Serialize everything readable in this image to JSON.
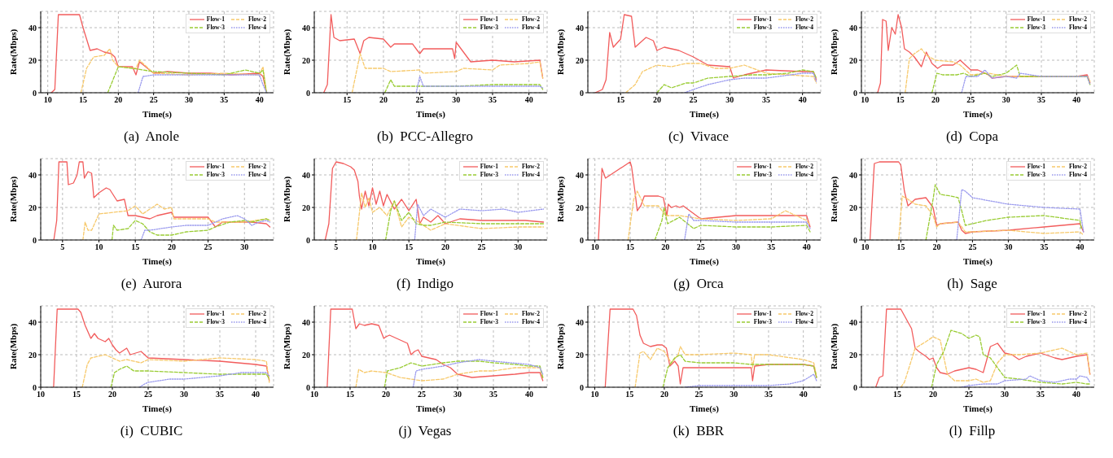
{
  "chart_data": [
    {
      "type": "line",
      "title": "(a)  Anole",
      "xlabel": "Time(s)",
      "ylabel": "Rate(Mbps)",
      "xlim": [
        9,
        42
      ],
      "xticks": [
        10,
        15,
        20,
        25,
        30,
        35,
        40
      ],
      "ylim": [
        0,
        50
      ],
      "yticks": [
        0,
        20,
        40
      ],
      "grid": true,
      "legend": "top right",
      "series": [
        {
          "name": "Flow-1",
          "color": "#f25c5c",
          "line_style": "solid",
          "x": [
            10.5,
            11,
            11.5,
            14.5,
            15,
            15.5,
            16,
            17,
            18,
            19,
            19.5,
            20,
            22,
            22.5,
            23,
            25,
            27,
            30,
            33,
            36,
            40,
            40.5,
            41
          ],
          "values": [
            0,
            2,
            48,
            48,
            40,
            33,
            26,
            27,
            25,
            24,
            22,
            16,
            16,
            11,
            19,
            12,
            13,
            12,
            12,
            11,
            12,
            10,
            0
          ]
        },
        {
          "name": "Flow-2",
          "color": "#f7c96b",
          "line_style": "dashed",
          "x": [
            14.7,
            15.5,
            16.5,
            18,
            18.8,
            19.2,
            20,
            22.5,
            23,
            25,
            30,
            35,
            40,
            40.5,
            41
          ],
          "values": [
            0,
            15,
            22,
            23,
            27,
            20,
            16,
            15,
            20,
            12,
            11,
            12,
            11,
            16,
            0
          ]
        },
        {
          "name": "Flow-3",
          "color": "#99cc33",
          "line_style": "dashed",
          "x": [
            18.5,
            20,
            22,
            25,
            30,
            35,
            38,
            40,
            40.5,
            41
          ],
          "values": [
            0,
            16,
            15,
            13,
            12,
            11,
            14,
            12,
            14,
            0
          ]
        },
        {
          "name": "Flow-4",
          "color": "#9999ee",
          "line_style": "dotted",
          "x": [
            22.8,
            23.5,
            25,
            30,
            35,
            40,
            40.5,
            41
          ],
          "values": [
            0,
            10,
            11,
            11,
            11,
            11,
            5,
            0
          ]
        }
      ]
    },
    {
      "type": "line",
      "title": "(b)  PCC-Allegro",
      "xlabel": "Time(s)",
      "ylabel": "Rate(Mbps)",
      "xlim": [
        10.5,
        42.5
      ],
      "xticks": [
        15,
        20,
        25,
        30,
        35,
        40
      ],
      "ylim": [
        0,
        50
      ],
      "yticks": [
        0,
        20,
        40
      ],
      "grid": true,
      "legend": "top right",
      "series": [
        {
          "name": "Flow-1",
          "color": "#f25c5c",
          "line_style": "solid",
          "x": [
            11.8,
            12.3,
            12.8,
            13.2,
            14,
            16,
            16.8,
            17.3,
            18,
            20,
            21,
            21.5,
            24,
            25,
            25.5,
            29.5,
            29.8,
            30,
            31,
            32,
            35,
            38,
            41.5,
            41.9
          ],
          "values": [
            0,
            5,
            48,
            34,
            32,
            33,
            24,
            32,
            34,
            33,
            28,
            30,
            30,
            24,
            27,
            27,
            21,
            31,
            25,
            19,
            20,
            19,
            20,
            9
          ]
        },
        {
          "name": "Flow-2",
          "color": "#f7c96b",
          "line_style": "dashed",
          "x": [
            15.7,
            16.8,
            17.5,
            20,
            21,
            25,
            25.5,
            30,
            31,
            35,
            36,
            40,
            41.5,
            41.9
          ],
          "values": [
            0,
            24,
            15,
            15,
            13,
            14,
            12,
            13,
            15,
            14,
            17,
            18,
            19,
            9
          ]
        },
        {
          "name": "Flow-3",
          "color": "#99cc33",
          "line_style": "dashed",
          "x": [
            20.2,
            21,
            21.5,
            25,
            30,
            35,
            40,
            41.5,
            41.9
          ],
          "values": [
            0,
            8,
            4,
            4,
            4,
            5,
            5,
            5,
            2
          ]
        },
        {
          "name": "Flow-4",
          "color": "#9999ee",
          "line_style": "dotted",
          "x": [
            24.5,
            25,
            25.5,
            30,
            35,
            40,
            41.5,
            41.9
          ],
          "values": [
            0,
            10,
            4,
            4,
            4,
            4,
            4,
            3
          ]
        }
      ]
    },
    {
      "type": "line",
      "title": "(c)  Vivace",
      "xlabel": "Time(s)",
      "ylabel": "Rate(Mbps)",
      "xlim": [
        10.5,
        42.5
      ],
      "xticks": [
        15,
        20,
        25,
        30,
        35,
        40
      ],
      "ylim": [
        0,
        50
      ],
      "yticks": [
        0,
        20,
        40
      ],
      "grid": true,
      "legend": "top right",
      "series": [
        {
          "name": "Flow-1",
          "color": "#f25c5c",
          "line_style": "solid",
          "x": [
            11.5,
            12.5,
            13,
            13.5,
            14,
            15,
            15.5,
            16.5,
            17,
            17.5,
            18.5,
            19.5,
            20,
            21,
            22,
            23,
            25,
            27,
            30,
            30.5,
            32,
            35,
            40,
            41.5,
            41.9
          ],
          "values": [
            0,
            2,
            8,
            37,
            28,
            33,
            48,
            47,
            28,
            30,
            34,
            32,
            26,
            28,
            27,
            26,
            22,
            17,
            16,
            9,
            11,
            14,
            13,
            13,
            8
          ]
        },
        {
          "name": "Flow-2",
          "color": "#f7c96b",
          "line_style": "dashed",
          "x": [
            15.7,
            17,
            18,
            20,
            22,
            24,
            26,
            28,
            30,
            32,
            35,
            38,
            41.5,
            41.9
          ],
          "values": [
            0,
            5,
            13,
            17,
            16,
            18,
            18,
            15,
            15,
            17,
            12,
            11,
            10,
            6
          ]
        },
        {
          "name": "Flow-3",
          "color": "#99cc33",
          "line_style": "dashed",
          "x": [
            20,
            21,
            22,
            24,
            25,
            27,
            30,
            33,
            35,
            38,
            40,
            41.5,
            41.9
          ],
          "values": [
            0,
            5,
            3,
            6,
            6,
            9,
            10,
            11,
            11,
            12,
            14,
            13,
            9
          ]
        },
        {
          "name": "Flow-4",
          "color": "#9999ee",
          "line_style": "dotted",
          "x": [
            23.8,
            25,
            27,
            30,
            32,
            35,
            40,
            41.5,
            41.9
          ],
          "values": [
            0,
            2,
            5,
            8,
            9,
            9,
            12,
            12,
            7
          ]
        }
      ]
    },
    {
      "type": "line",
      "title": "(d)  Copa",
      "xlabel": "Time(s)",
      "ylabel": "Rate(Mbps)",
      "xlim": [
        9.5,
        42.5
      ],
      "xticks": [
        10,
        15,
        20,
        25,
        30,
        35,
        40
      ],
      "ylim": [
        0,
        50
      ],
      "yticks": [
        0,
        20,
        40
      ],
      "grid": true,
      "legend": "top right",
      "series": [
        {
          "name": "Flow-1",
          "color": "#f25c5c",
          "line_style": "solid",
          "x": [
            11.8,
            12.2,
            12.5,
            13,
            13.3,
            13.8,
            14.3,
            14.7,
            15.2,
            15.6,
            16.3,
            17,
            18,
            18.7,
            19.5,
            20.3,
            21,
            22.5,
            23.5,
            25,
            26,
            27.5,
            28,
            30,
            35,
            40,
            41.5,
            41.9
          ],
          "values": [
            0,
            6,
            45,
            44,
            26,
            40,
            36,
            48,
            40,
            27,
            25,
            22,
            16,
            25,
            18,
            15,
            17,
            17,
            20,
            14,
            14,
            11,
            9,
            10,
            10,
            10,
            11,
            6
          ]
        },
        {
          "name": "Flow-2",
          "color": "#f7c96b",
          "line_style": "dashed",
          "x": [
            15.7,
            16.3,
            17,
            18,
            18.7,
            20,
            22.5,
            23.5,
            25,
            27.5,
            30,
            35,
            41.5,
            41.9
          ],
          "values": [
            0,
            21,
            24,
            27,
            23,
            20,
            19,
            17,
            11,
            12,
            10,
            10,
            10,
            7
          ]
        },
        {
          "name": "Flow-3",
          "color": "#99cc33",
          "line_style": "dashed",
          "x": [
            19.5,
            20.2,
            21,
            23,
            24,
            25,
            27,
            28,
            30,
            31.5,
            32,
            35,
            41.5,
            41.9
          ],
          "values": [
            0,
            12,
            11,
            11,
            12,
            10,
            12,
            10,
            12,
            17,
            10,
            10,
            10,
            5
          ]
        },
        {
          "name": "Flow-4",
          "color": "#9999ee",
          "line_style": "dotted",
          "x": [
            23.7,
            24.3,
            25,
            26,
            27,
            28,
            30,
            31.5,
            32,
            35,
            41.5,
            41.9
          ],
          "values": [
            0,
            10,
            10,
            10,
            14,
            9,
            10,
            9,
            12,
            10,
            10,
            5
          ]
        }
      ]
    },
    {
      "type": "line",
      "title": "(e)  Aurora",
      "xlabel": "Time(s)",
      "ylabel": "Rate(Mbps)",
      "xlim": [
        2,
        34
      ],
      "xticks": [
        5,
        10,
        15,
        20,
        25,
        30
      ],
      "ylim": [
        0,
        50
      ],
      "yticks": [
        0,
        20,
        40
      ],
      "grid": true,
      "legend": "top right",
      "series": [
        {
          "name": "Flow-1",
          "color": "#f25c5c",
          "line_style": "solid",
          "x": [
            3.8,
            4.2,
            4.5,
            5,
            5.6,
            5.8,
            6.5,
            7,
            7.3,
            7.8,
            8,
            8.5,
            9,
            9.3,
            10,
            11,
            11.5,
            12.5,
            13.5,
            14,
            15,
            17,
            18,
            20,
            20.3,
            22,
            25,
            26,
            27,
            30,
            31,
            33,
            33.5
          ],
          "values": [
            0,
            12,
            48,
            48,
            48,
            34,
            35,
            40,
            48,
            48,
            38,
            42,
            41,
            26,
            29,
            32,
            31,
            24,
            25,
            15,
            15,
            13,
            15,
            17,
            14,
            14,
            14,
            8,
            11,
            11,
            11,
            10,
            8
          ]
        },
        {
          "name": "Flow-2",
          "color": "#f7c96b",
          "line_style": "dashed",
          "x": [
            7.8,
            8.1,
            8.5,
            9,
            10,
            12,
            14,
            15,
            16,
            17,
            18,
            19,
            20,
            20.3,
            22,
            25,
            26,
            30,
            33,
            33.5
          ],
          "values": [
            0,
            11,
            6,
            6,
            16,
            17,
            18,
            21,
            16,
            19,
            22,
            19,
            20,
            13,
            13,
            13,
            11,
            11,
            13,
            12
          ]
        },
        {
          "name": "Flow-3",
          "color": "#99cc33",
          "line_style": "dashed",
          "x": [
            11.8,
            12,
            12.5,
            14,
            15,
            16,
            17,
            18,
            20,
            22,
            25,
            26,
            28,
            30,
            31,
            33,
            33.5
          ],
          "values": [
            0,
            9,
            6,
            7,
            12,
            10,
            5,
            3,
            3,
            5,
            6,
            8,
            11,
            12,
            11,
            13,
            12
          ]
        },
        {
          "name": "Flow-4",
          "color": "#9999ee",
          "line_style": "dotted",
          "x": [
            15.8,
            16.3,
            17,
            20,
            22,
            25,
            27,
            29,
            30,
            31,
            32,
            33,
            33.5
          ],
          "values": [
            0,
            6,
            6,
            8,
            9,
            9,
            13,
            15,
            13,
            9,
            11,
            12,
            11
          ]
        }
      ]
    },
    {
      "type": "line",
      "title": "(f)  Indigo",
      "xlabel": "Time(s)",
      "ylabel": "Rate(Mbps)",
      "xlim": [
        2,
        34
      ],
      "xticks": [
        5,
        10,
        15,
        20,
        25,
        30
      ],
      "ylim": [
        0,
        50
      ],
      "yticks": [
        0,
        20,
        40
      ],
      "grid": true,
      "legend": "top right",
      "series": [
        {
          "name": "Flow-1",
          "color": "#f25c5c",
          "line_style": "solid",
          "x": [
            3.5,
            4,
            4.5,
            5,
            6,
            7,
            7.5,
            8,
            8.2,
            8.5,
            9,
            9.5,
            10,
            10.5,
            11,
            11.5,
            12,
            13,
            14,
            15,
            16,
            16.5,
            17,
            18,
            19,
            20,
            22,
            25,
            28,
            31,
            33.5
          ],
          "values": [
            0,
            10,
            44,
            48,
            47,
            45,
            43,
            36,
            27,
            19,
            30,
            21,
            32,
            22,
            30,
            21,
            28,
            19,
            25,
            18,
            25,
            10,
            14,
            11,
            15,
            10,
            13,
            12,
            12,
            12,
            11
          ]
        },
        {
          "name": "Flow-2",
          "color": "#f7c96b",
          "line_style": "dashed",
          "x": [
            7.8,
            8.5,
            9,
            9.5,
            10,
            11,
            12,
            13,
            14,
            15,
            16,
            17,
            18,
            20,
            25,
            30,
            33.5
          ],
          "values": [
            0,
            29,
            20,
            26,
            17,
            20,
            15,
            24,
            8,
            14,
            12,
            9,
            6,
            10,
            7,
            8,
            8
          ]
        },
        {
          "name": "Flow-3",
          "color": "#99cc33",
          "line_style": "dashed",
          "x": [
            11.8,
            12.5,
            13,
            14,
            15,
            16,
            17,
            18,
            20,
            25,
            30,
            33.5
          ],
          "values": [
            0,
            18,
            24,
            12,
            17,
            10,
            9,
            9,
            11,
            10,
            10,
            10
          ]
        },
        {
          "name": "Flow-4",
          "color": "#9999ee",
          "line_style": "dotted",
          "x": [
            15.8,
            16.2,
            17,
            18,
            20,
            22,
            25,
            28,
            30,
            33.5
          ],
          "values": [
            0,
            22,
            15,
            19,
            14,
            19,
            18,
            19,
            17,
            19
          ]
        }
      ]
    },
    {
      "type": "line",
      "title": "(g)  Orca",
      "xlabel": "Time(s)",
      "ylabel": "Rate(Mbps)",
      "xlim": [
        9,
        42
      ],
      "xticks": [
        10,
        15,
        20,
        25,
        30,
        35,
        40
      ],
      "ylim": [
        0,
        50
      ],
      "yticks": [
        0,
        20,
        40
      ],
      "grid": true,
      "legend": "top right",
      "series": [
        {
          "name": "Flow-1",
          "color": "#f25c5c",
          "line_style": "solid",
          "x": [
            10.5,
            11,
            11.5,
            15,
            15.2,
            15.7,
            16,
            16.5,
            17,
            19,
            19.7,
            20.2,
            20.4,
            20.8,
            21.5,
            22,
            22.5,
            25,
            30,
            35,
            40,
            40.5
          ],
          "values": [
            0,
            44,
            38,
            48,
            45,
            29,
            18,
            21,
            27,
            27,
            26,
            15,
            22,
            20,
            21,
            20,
            21,
            13,
            15,
            15,
            15,
            8
          ]
        },
        {
          "name": "Flow-2",
          "color": "#f7c96b",
          "line_style": "dashed",
          "x": [
            14.7,
            15.5,
            16,
            17,
            19,
            20,
            22,
            25,
            30,
            35,
            37,
            40,
            40.5
          ],
          "values": [
            0,
            25,
            30,
            21,
            21,
            15,
            15,
            13,
            12,
            13,
            18,
            12,
            9
          ]
        },
        {
          "name": "Flow-3",
          "color": "#99cc33",
          "line_style": "dashed",
          "x": [
            18.5,
            19.5,
            19.8,
            20.3,
            22,
            24,
            25,
            30,
            35,
            40,
            40.5
          ],
          "values": [
            0,
            12,
            20,
            10,
            14,
            7,
            9,
            8,
            8,
            9,
            5
          ]
        },
        {
          "name": "Flow-4",
          "color": "#9999ee",
          "line_style": "dotted",
          "x": [
            22.7,
            23.3,
            24,
            25,
            30,
            35,
            40,
            40.5
          ],
          "values": [
            0,
            16,
            12,
            12,
            11,
            11,
            11,
            7
          ]
        }
      ]
    },
    {
      "type": "line",
      "title": "(h)  Sage",
      "xlabel": "Time(s)",
      "ylabel": "Rate(Mbps)",
      "xlim": [
        9.5,
        42
      ],
      "xticks": [
        10,
        15,
        20,
        25,
        30,
        35,
        40
      ],
      "ylim": [
        0,
        50
      ],
      "yticks": [
        0,
        20,
        40
      ],
      "grid": true,
      "legend": "top right",
      "series": [
        {
          "name": "Flow-1",
          "color": "#f25c5c",
          "line_style": "solid",
          "x": [
            10.7,
            11.3,
            12,
            14.7,
            15,
            15.5,
            16,
            17,
            18.5,
            19.5,
            20,
            20.5,
            23,
            23.5,
            24,
            25,
            30,
            35,
            40,
            40.5
          ],
          "values": [
            0,
            47,
            48,
            48,
            46,
            30,
            21,
            25,
            26,
            20,
            9,
            10,
            11,
            6,
            4,
            5,
            6,
            8,
            10,
            5
          ]
        },
        {
          "name": "Flow-2",
          "color": "#f7c96b",
          "line_style": "dashed",
          "x": [
            14.7,
            15.2,
            16,
            17,
            18.5,
            19.5,
            20,
            20.5,
            23,
            24,
            25,
            30,
            35,
            40,
            40.5
          ],
          "values": [
            0,
            27,
            25,
            22,
            21,
            15,
            8,
            10,
            11,
            5,
            5,
            6,
            4,
            5,
            3
          ]
        },
        {
          "name": "Flow-3",
          "color": "#99cc33",
          "line_style": "dashed",
          "x": [
            18.5,
            19.5,
            19.8,
            20.5,
            22,
            23,
            23.5,
            24,
            25,
            27,
            30,
            35,
            40,
            40.2
          ],
          "values": [
            0,
            25,
            34,
            28,
            27,
            26,
            18,
            9,
            10,
            12,
            14,
            15,
            12,
            7
          ]
        },
        {
          "name": "Flow-4",
          "color": "#9999ee",
          "line_style": "dotted",
          "x": [
            22.8,
            23.5,
            24,
            25,
            30,
            35,
            40,
            40.5
          ],
          "values": [
            0,
            31,
            30,
            26,
            22,
            20,
            19,
            5
          ]
        }
      ]
    },
    {
      "type": "line",
      "title": "(i)  CUBIC",
      "xlabel": "Time(s)",
      "ylabel": "Rate(Mbps)",
      "xlim": [
        10,
        42.5
      ],
      "xticks": [
        10,
        15,
        20,
        25,
        30,
        35,
        40
      ],
      "ylim": [
        0,
        50
      ],
      "yticks": [
        0,
        20,
        40
      ],
      "grid": true,
      "legend": "top right",
      "series": [
        {
          "name": "Flow-1",
          "color": "#f25c5c",
          "line_style": "solid",
          "x": [
            11.8,
            12.3,
            15.2,
            15.6,
            16.2,
            16.5,
            17,
            17.5,
            18,
            19,
            19.5,
            20,
            20.5,
            21,
            22,
            22.5,
            24,
            25,
            30,
            35,
            40,
            41.5,
            41.9
          ],
          "values": [
            0,
            48,
            48,
            46,
            38,
            35,
            30,
            33,
            30,
            28,
            30,
            26,
            23,
            21,
            24,
            20,
            22,
            18,
            17,
            16,
            14,
            13,
            4
          ]
        },
        {
          "name": "Flow-2",
          "color": "#f7c96b",
          "line_style": "dashed",
          "x": [
            15.8,
            16.5,
            17,
            18,
            19,
            20,
            21,
            22,
            24,
            25,
            30,
            35,
            40,
            41.5,
            41.9
          ],
          "values": [
            0,
            14,
            18,
            19,
            20,
            18,
            16,
            17,
            15,
            17,
            16,
            18,
            17,
            16,
            3
          ]
        },
        {
          "name": "Flow-3",
          "color": "#99cc33",
          "line_style": "dashed",
          "x": [
            19.8,
            20.3,
            21,
            22,
            23,
            25,
            30,
            35,
            40,
            41.5,
            41.9
          ],
          "values": [
            0,
            9,
            11,
            13,
            10,
            10,
            9,
            8,
            8,
            8,
            5
          ]
        },
        {
          "name": "Flow-4",
          "color": "#9999ee",
          "line_style": "dotted",
          "x": [
            23.8,
            24.5,
            25,
            28,
            30,
            35,
            38,
            40,
            41.5,
            41.9
          ],
          "values": [
            0,
            2,
            3,
            5,
            5,
            7,
            9,
            9,
            9,
            7
          ]
        }
      ]
    },
    {
      "type": "line",
      "title": "(j)  Vegas",
      "xlabel": "Time(s)",
      "ylabel": "Rate(Mbps)",
      "xlim": [
        10,
        42.5
      ],
      "xticks": [
        10,
        15,
        20,
        25,
        30,
        35,
        40
      ],
      "ylim": [
        0,
        50
      ],
      "yticks": [
        0,
        20,
        40
      ],
      "grid": true,
      "legend": "top right",
      "series": [
        {
          "name": "Flow-1",
          "color": "#f25c5c",
          "line_style": "solid",
          "x": [
            11.8,
            12.3,
            15.3,
            15.8,
            16.3,
            17,
            18,
            19,
            19.7,
            20,
            20.5,
            22,
            23,
            23.5,
            24,
            24.5,
            25,
            27,
            28,
            29,
            30,
            32,
            35,
            38,
            40,
            41.5,
            41.9
          ],
          "values": [
            0,
            48,
            48,
            36,
            39,
            38,
            39,
            38,
            30,
            31,
            32,
            29,
            27,
            20,
            22,
            23,
            19,
            17,
            14,
            12,
            8,
            6,
            7,
            8,
            9,
            9,
            4
          ]
        },
        {
          "name": "Flow-2",
          "color": "#f7c96b",
          "line_style": "dashed",
          "x": [
            15.8,
            16.2,
            17,
            18,
            20,
            22,
            25,
            28,
            30,
            33,
            35,
            38,
            40,
            41.5,
            41.9
          ],
          "values": [
            0,
            11,
            9,
            10,
            9,
            6,
            4,
            5,
            8,
            10,
            10,
            12,
            12,
            12,
            6
          ]
        },
        {
          "name": "Flow-3",
          "color": "#99cc33",
          "line_style": "dashed",
          "x": [
            19.8,
            20.2,
            22,
            23.5,
            25,
            28,
            30,
            33,
            35,
            38,
            40,
            41.5,
            41.9
          ],
          "values": [
            0,
            10,
            12,
            15,
            13,
            15,
            16,
            16,
            15,
            14,
            13,
            13,
            6
          ]
        },
        {
          "name": "Flow-4",
          "color": "#9999ee",
          "line_style": "dotted",
          "x": [
            23.8,
            24.2,
            25,
            28,
            30,
            33,
            35,
            40,
            41.5,
            41.9
          ],
          "values": [
            0,
            10,
            11,
            13,
            15,
            17,
            16,
            14,
            12,
            8
          ]
        }
      ]
    },
    {
      "type": "line",
      "title": "(k)  BBR",
      "xlabel": "Time(s)",
      "ylabel": "Rate(Mbps)",
      "xlim": [
        9,
        42.5
      ],
      "xticks": [
        10,
        15,
        20,
        25,
        30,
        35,
        40
      ],
      "ylim": [
        0,
        50
      ],
      "yticks": [
        0,
        20,
        40
      ],
      "grid": true,
      "legend": "top right",
      "series": [
        {
          "name": "Flow-1",
          "color": "#f25c5c",
          "line_style": "solid",
          "x": [
            11.5,
            12.2,
            15.5,
            16,
            16.5,
            17,
            18,
            19,
            19.7,
            20.3,
            20.8,
            21.5,
            22,
            22.3,
            22.7,
            25,
            30,
            32.5,
            32.7,
            33,
            35,
            40,
            41.5,
            41.9
          ],
          "values": [
            0,
            48,
            48,
            44,
            32,
            27,
            25,
            26,
            26,
            24,
            13,
            16,
            13,
            2,
            12,
            12,
            12,
            12,
            4,
            13,
            14,
            14,
            13,
            6
          ]
        },
        {
          "name": "Flow-2",
          "color": "#f7c96b",
          "line_style": "dashed",
          "x": [
            15.8,
            16.5,
            17,
            18,
            19,
            20,
            21,
            22,
            22.3,
            23,
            25,
            30,
            32.5,
            32.7,
            33,
            35,
            40,
            41.5,
            41.9
          ],
          "values": [
            0,
            21,
            22,
            17,
            24,
            22,
            15,
            20,
            25,
            20,
            20,
            21,
            20,
            12,
            20,
            20,
            17,
            15,
            7
          ]
        },
        {
          "name": "Flow-3",
          "color": "#99cc33",
          "line_style": "dashed",
          "x": [
            19.8,
            20.5,
            21.5,
            22.3,
            23,
            25,
            30,
            32.5,
            33,
            35,
            40,
            41.5,
            41.9
          ],
          "values": [
            0,
            12,
            18,
            20,
            16,
            15,
            15,
            14,
            14,
            14,
            14,
            13,
            6
          ]
        },
        {
          "name": "Flow-4",
          "color": "#9999ee",
          "line_style": "dotted",
          "x": [
            23,
            25,
            30,
            35,
            38,
            40,
            41.5,
            41.9
          ],
          "values": [
            0,
            1,
            1,
            1,
            2,
            4,
            8,
            4
          ]
        }
      ]
    },
    {
      "type": "line",
      "title": "(l)  Fillp",
      "xlabel": "Time(s)",
      "ylabel": "Rate(Mbps)",
      "xlim": [
        10,
        42.5
      ],
      "xticks": [
        15,
        20,
        25,
        30,
        35,
        40
      ],
      "ylim": [
        0,
        50
      ],
      "yticks": [
        0,
        20,
        40
      ],
      "grid": true,
      "legend": "top right",
      "series": [
        {
          "name": "Flow-1",
          "color": "#f25c5c",
          "line_style": "solid",
          "x": [
            12,
            12.5,
            13,
            13.5,
            15.5,
            16,
            17,
            17.5,
            18,
            19,
            19.5,
            20,
            20.5,
            21,
            22,
            23,
            24,
            25,
            26,
            27,
            28,
            29,
            30,
            31,
            32,
            33,
            35,
            37,
            38,
            40,
            41.5,
            41.9
          ],
          "values": [
            0,
            6,
            7,
            48,
            48,
            44,
            36,
            24,
            22,
            19,
            17,
            18,
            12,
            9,
            8,
            10,
            11,
            12,
            11,
            9,
            25,
            27,
            21,
            20,
            17,
            19,
            21,
            18,
            17,
            19,
            20,
            8
          ]
        },
        {
          "name": "Flow-2",
          "color": "#f7c96b",
          "line_style": "dashed",
          "x": [
            15.5,
            16,
            17.5,
            19,
            20,
            21,
            22,
            23,
            25,
            26,
            27,
            28,
            29,
            30,
            32,
            35,
            38,
            40,
            41.5,
            41.9
          ],
          "values": [
            0,
            3,
            24,
            28,
            31,
            29,
            8,
            4,
            4,
            5,
            3,
            4,
            15,
            20,
            20,
            21,
            24,
            20,
            21,
            8
          ]
        },
        {
          "name": "Flow-3",
          "color": "#99cc33",
          "line_style": "dashed",
          "x": [
            19.8,
            20.5,
            21.5,
            22.5,
            24,
            25,
            26,
            26.5,
            27,
            28,
            29,
            30,
            32,
            35,
            38,
            40,
            41.5,
            41.9
          ],
          "values": [
            0,
            14,
            22,
            35,
            33,
            30,
            32,
            31,
            20,
            18,
            12,
            6,
            5,
            3,
            2,
            3,
            2,
            2
          ]
        },
        {
          "name": "Flow-4",
          "color": "#9999ee",
          "line_style": "dotted",
          "x": [
            24,
            25,
            27,
            29,
            30,
            33,
            33.5,
            35,
            37,
            38,
            39,
            40,
            40.5,
            41.5,
            41.9
          ],
          "values": [
            0,
            1,
            2,
            2,
            4,
            5,
            7,
            4,
            3,
            4,
            5,
            5,
            7,
            6,
            3
          ]
        }
      ]
    }
  ]
}
